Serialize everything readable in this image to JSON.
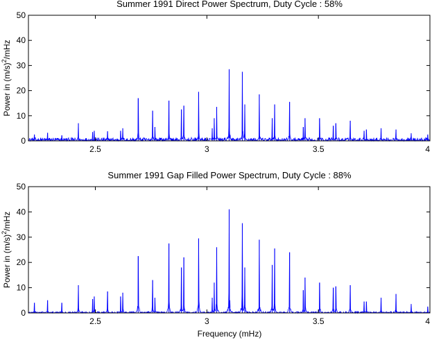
{
  "chart_data": [
    {
      "type": "line",
      "title": "Summer 1991 Direct Power Spectrum, Duty Cycle : 58%",
      "xlabel": "",
      "ylabel_main": "Power in (m/s)",
      "ylabel_sup": "2",
      "ylabel_tail": "/mHz",
      "xlim": [
        2.2,
        4.0
      ],
      "ylim": [
        0,
        50
      ],
      "xticks": [
        "2.5",
        "3",
        "3.5",
        "4"
      ],
      "xtick_values": [
        2.5,
        3.0,
        3.5,
        4.0
      ],
      "yticks": [
        "0",
        "10",
        "20",
        "30",
        "40",
        "50"
      ],
      "ytick_values": [
        0,
        10,
        20,
        30,
        40,
        50
      ],
      "color": "#0000ff",
      "noise_level": 0.6,
      "peaks": [
        {
          "x": 2.227,
          "y": 2.5
        },
        {
          "x": 2.286,
          "y": 3.2
        },
        {
          "x": 2.35,
          "y": 2.2
        },
        {
          "x": 2.424,
          "y": 7.0
        },
        {
          "x": 2.488,
          "y": 3.5
        },
        {
          "x": 2.495,
          "y": 4.0
        },
        {
          "x": 2.555,
          "y": 3.8
        },
        {
          "x": 2.613,
          "y": 4.0
        },
        {
          "x": 2.623,
          "y": 5.0
        },
        {
          "x": 2.692,
          "y": 17.0
        },
        {
          "x": 2.757,
          "y": 12.0
        },
        {
          "x": 2.767,
          "y": 5.5
        },
        {
          "x": 2.83,
          "y": 16.0
        },
        {
          "x": 2.886,
          "y": 12.5
        },
        {
          "x": 2.897,
          "y": 14.0
        },
        {
          "x": 2.963,
          "y": 19.5
        },
        {
          "x": 3.024,
          "y": 5.0
        },
        {
          "x": 3.033,
          "y": 9.0
        },
        {
          "x": 3.044,
          "y": 13.5
        },
        {
          "x": 3.1,
          "y": 28.5
        },
        {
          "x": 3.159,
          "y": 27.5
        },
        {
          "x": 3.17,
          "y": 14.5
        },
        {
          "x": 3.235,
          "y": 18.5
        },
        {
          "x": 3.293,
          "y": 9.0
        },
        {
          "x": 3.304,
          "y": 14.5
        },
        {
          "x": 3.371,
          "y": 15.5
        },
        {
          "x": 3.432,
          "y": 5.5
        },
        {
          "x": 3.44,
          "y": 9.0
        },
        {
          "x": 3.505,
          "y": 9.0
        },
        {
          "x": 3.567,
          "y": 6.0
        },
        {
          "x": 3.578,
          "y": 7.0
        },
        {
          "x": 3.643,
          "y": 8.0
        },
        {
          "x": 3.705,
          "y": 4.0
        },
        {
          "x": 3.715,
          "y": 4.5
        },
        {
          "x": 3.781,
          "y": 5.0
        },
        {
          "x": 3.848,
          "y": 4.5
        },
        {
          "x": 3.916,
          "y": 3.0
        },
        {
          "x": 3.99,
          "y": 2.5
        }
      ]
    },
    {
      "type": "line",
      "title": "Summer 1991 Gap Filled Power Spectrum, Duty Cycle : 88%",
      "xlabel": "Frequency (mHz)",
      "ylabel_main": "Power in (m/s)",
      "ylabel_sup": "2",
      "ylabel_tail": "/mHz",
      "xlim": [
        2.2,
        4.0
      ],
      "ylim": [
        0,
        50
      ],
      "xticks": [
        "2.5",
        "3",
        "3.5",
        "4"
      ],
      "xtick_values": [
        2.5,
        3.0,
        3.5,
        4.0
      ],
      "yticks": [
        "0",
        "10",
        "20",
        "30",
        "40",
        "50"
      ],
      "ytick_values": [
        0,
        10,
        20,
        30,
        40,
        50
      ],
      "color": "#0000ff",
      "noise_level": 0.25,
      "peaks": [
        {
          "x": 2.227,
          "y": 4.0
        },
        {
          "x": 2.286,
          "y": 5.0
        },
        {
          "x": 2.35,
          "y": 4.0
        },
        {
          "x": 2.424,
          "y": 11.0
        },
        {
          "x": 2.488,
          "y": 5.5
        },
        {
          "x": 2.495,
          "y": 6.5
        },
        {
          "x": 2.555,
          "y": 8.5
        },
        {
          "x": 2.613,
          "y": 6.5
        },
        {
          "x": 2.623,
          "y": 8.0
        },
        {
          "x": 2.692,
          "y": 22.5
        },
        {
          "x": 2.757,
          "y": 13.0
        },
        {
          "x": 2.767,
          "y": 6.0
        },
        {
          "x": 2.83,
          "y": 27.5
        },
        {
          "x": 2.886,
          "y": 18.0
        },
        {
          "x": 2.897,
          "y": 22.0
        },
        {
          "x": 2.963,
          "y": 29.5
        },
        {
          "x": 3.024,
          "y": 6.0
        },
        {
          "x": 3.033,
          "y": 12.0
        },
        {
          "x": 3.044,
          "y": 26.0
        },
        {
          "x": 3.1,
          "y": 41.0
        },
        {
          "x": 3.159,
          "y": 35.5
        },
        {
          "x": 3.17,
          "y": 18.0
        },
        {
          "x": 3.235,
          "y": 29.0
        },
        {
          "x": 3.293,
          "y": 19.0
        },
        {
          "x": 3.304,
          "y": 25.5
        },
        {
          "x": 3.371,
          "y": 24.0
        },
        {
          "x": 3.432,
          "y": 9.0
        },
        {
          "x": 3.44,
          "y": 14.0
        },
        {
          "x": 3.505,
          "y": 12.0
        },
        {
          "x": 3.567,
          "y": 10.0
        },
        {
          "x": 3.578,
          "y": 10.5
        },
        {
          "x": 3.643,
          "y": 11.0
        },
        {
          "x": 3.705,
          "y": 4.5
        },
        {
          "x": 3.715,
          "y": 4.5
        },
        {
          "x": 3.781,
          "y": 6.0
        },
        {
          "x": 3.848,
          "y": 7.5
        },
        {
          "x": 3.916,
          "y": 3.5
        },
        {
          "x": 3.99,
          "y": 2.5
        }
      ]
    }
  ]
}
